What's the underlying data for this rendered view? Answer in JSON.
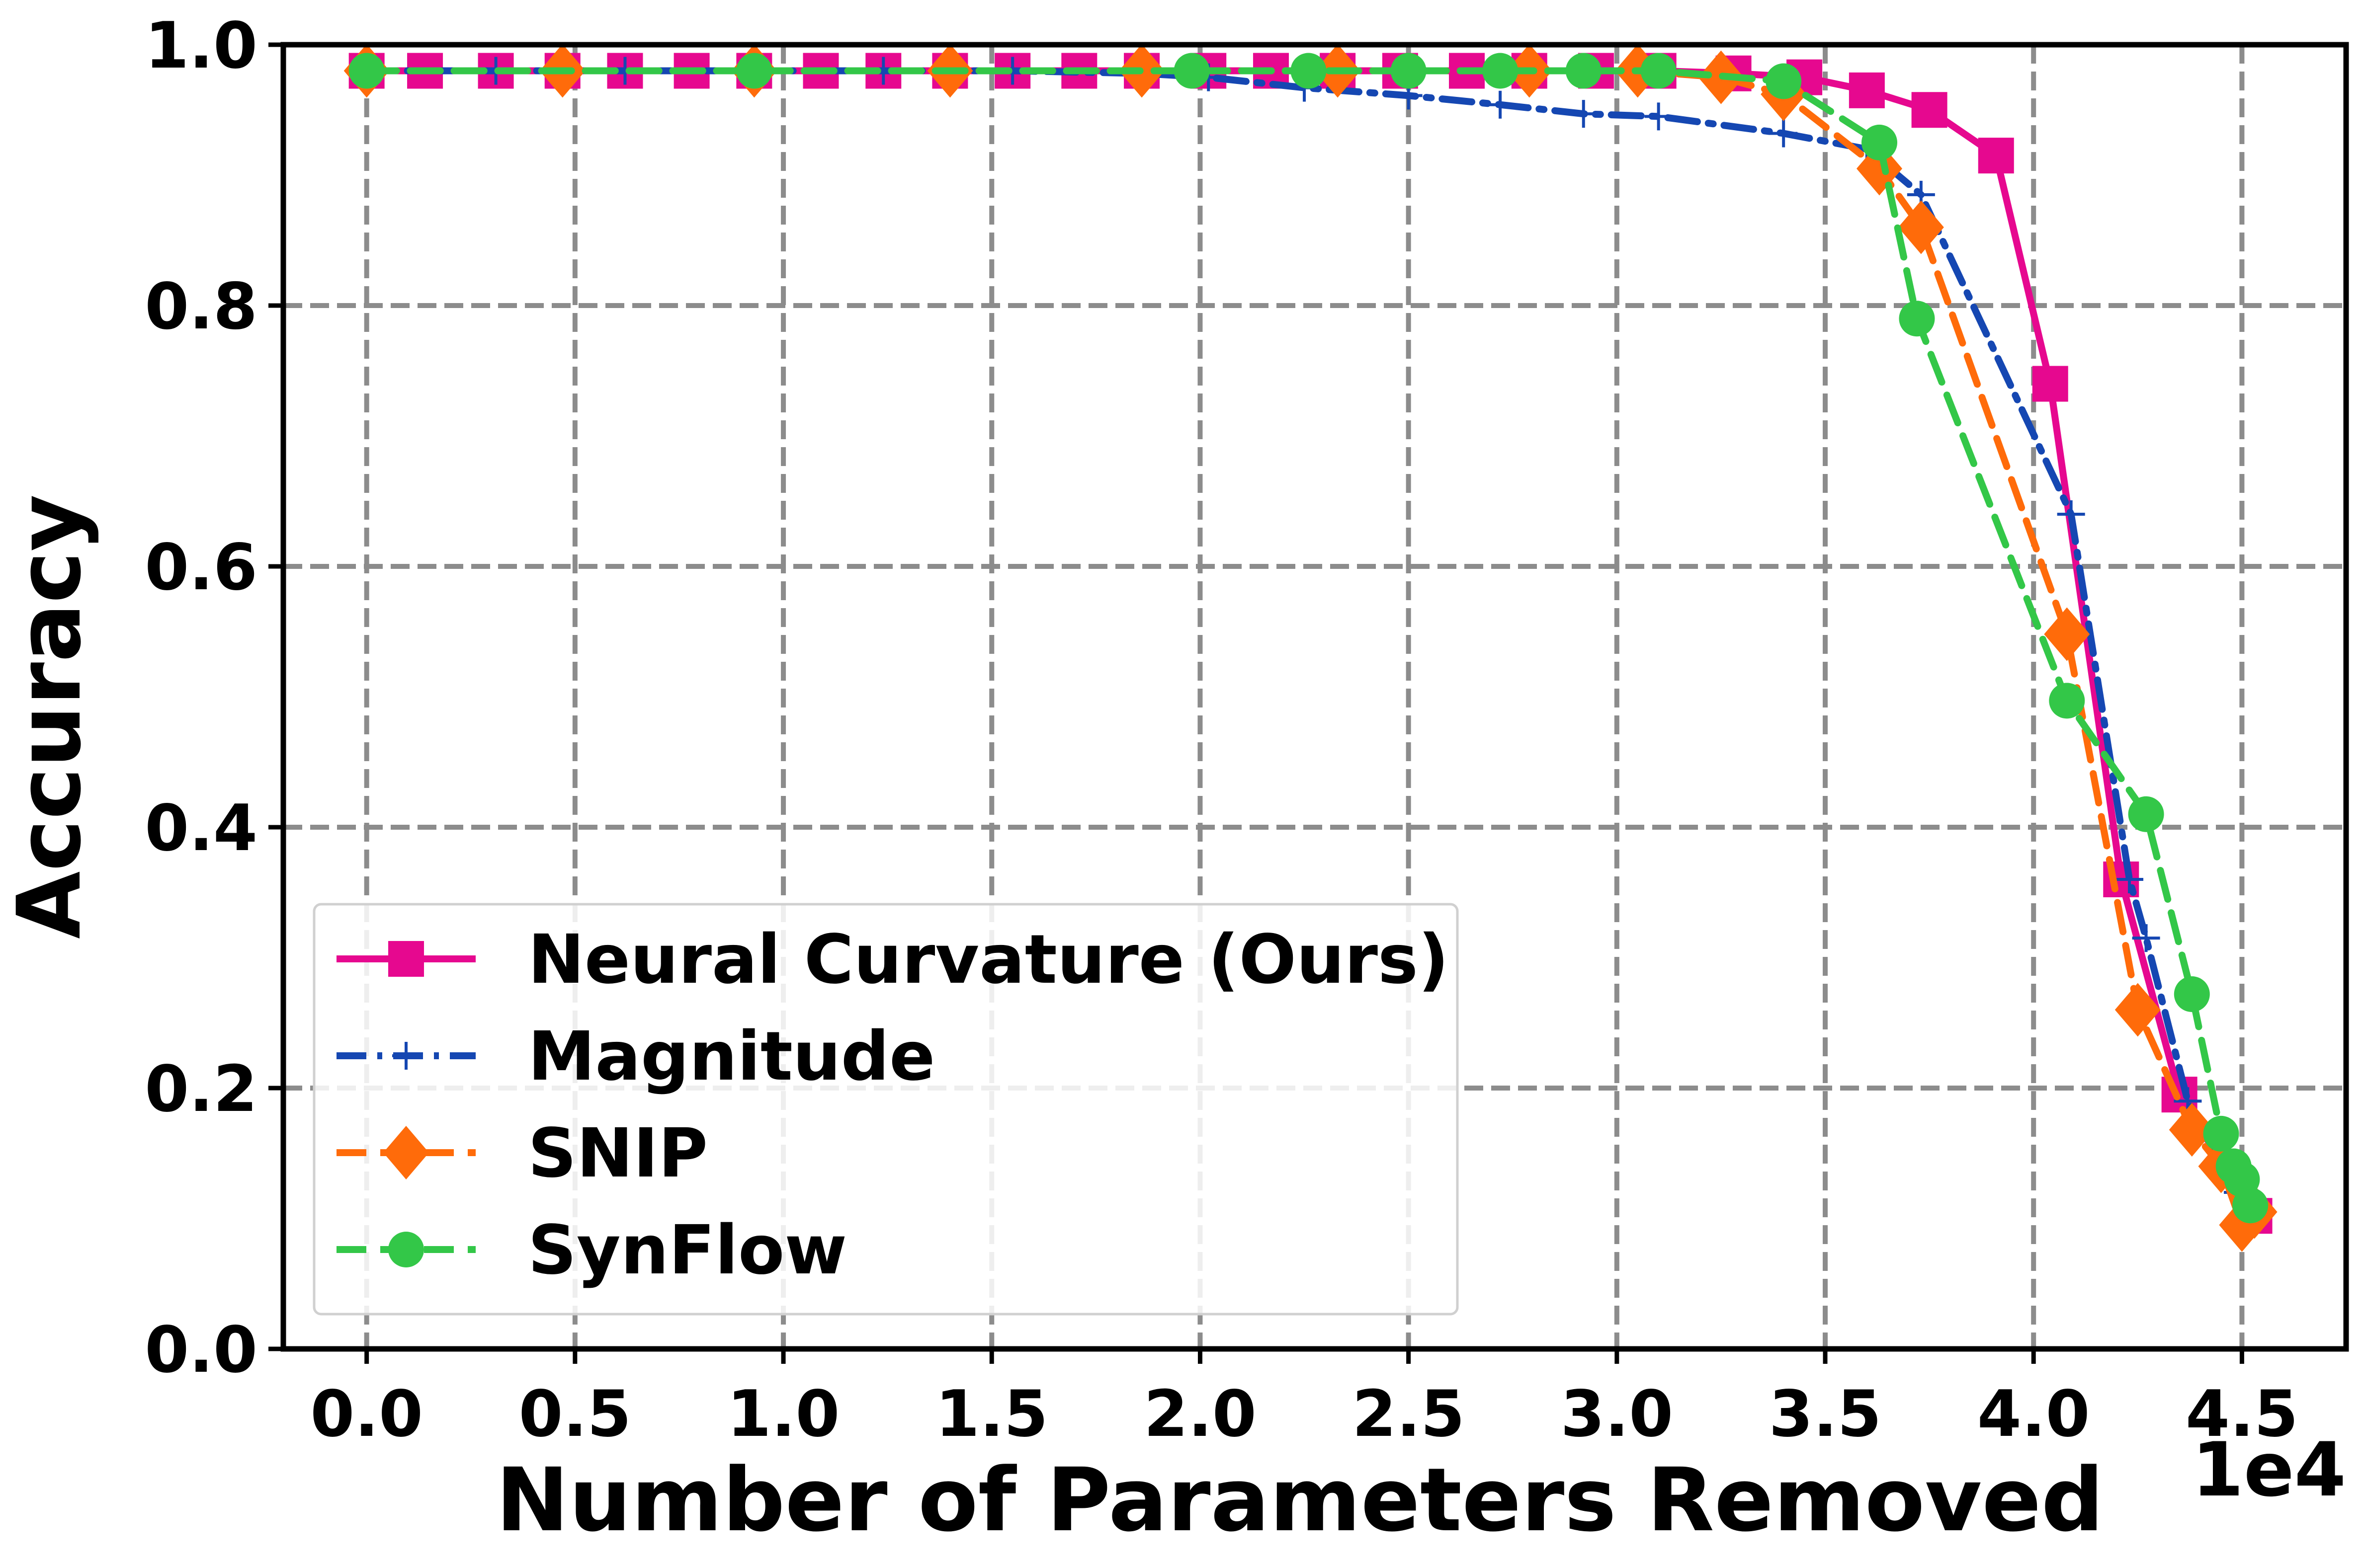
{
  "chart_data": {
    "type": "line",
    "title": "",
    "xlabel": "Number of Parameters Removed",
    "ylabel": "Accuracy",
    "x_multiplier_label": "1e4",
    "xlim": [
      -0.2,
      4.75
    ],
    "ylim": [
      0.0,
      1.0
    ],
    "xticks": [
      0.0,
      0.5,
      1.0,
      1.5,
      2.0,
      2.5,
      3.0,
      3.5,
      4.0,
      4.5
    ],
    "xtick_labels": [
      "0.0",
      "0.5",
      "1.0",
      "1.5",
      "2.0",
      "2.5",
      "3.0",
      "3.5",
      "4.0",
      "4.5"
    ],
    "yticks": [
      0.0,
      0.2,
      0.4,
      0.6,
      0.8,
      1.0
    ],
    "ytick_labels": [
      "0.0",
      "0.2",
      "0.4",
      "0.6",
      "0.8",
      "1.0"
    ],
    "grid": true,
    "legend_position": "lower-left",
    "series": [
      {
        "name": "Neural Curvature (Ours)",
        "color": "#e6088f",
        "marker": "square",
        "linestyle": "solid",
        "points": [
          [
            0.0,
            0.98
          ],
          [
            0.14,
            0.98
          ],
          [
            0.31,
            0.98
          ],
          [
            0.47,
            0.98
          ],
          [
            0.62,
            0.98
          ],
          [
            0.78,
            0.98
          ],
          [
            0.93,
            0.98
          ],
          [
            1.09,
            0.98
          ],
          [
            1.24,
            0.98
          ],
          [
            1.4,
            0.98
          ],
          [
            1.55,
            0.98
          ],
          [
            1.71,
            0.98
          ],
          [
            1.86,
            0.98
          ],
          [
            2.02,
            0.98
          ],
          [
            2.17,
            0.98
          ],
          [
            2.33,
            0.98
          ],
          [
            2.48,
            0.98
          ],
          [
            2.64,
            0.98
          ],
          [
            2.79,
            0.98
          ],
          [
            2.95,
            0.98
          ],
          [
            3.1,
            0.98
          ],
          [
            3.28,
            0.978
          ],
          [
            3.45,
            0.975
          ],
          [
            3.6,
            0.965
          ],
          [
            3.75,
            0.95
          ],
          [
            3.91,
            0.915
          ],
          [
            4.04,
            0.74
          ],
          [
            4.21,
            0.36
          ],
          [
            4.35,
            0.195
          ],
          [
            4.53,
            0.102
          ]
        ]
      },
      {
        "name": "Magnitude",
        "color": "#1547b2",
        "marker": "plus",
        "linestyle": "dashdot",
        "points": [
          [
            0.0,
            0.98
          ],
          [
            0.31,
            0.98
          ],
          [
            0.62,
            0.98
          ],
          [
            0.93,
            0.98
          ],
          [
            1.24,
            0.98
          ],
          [
            1.55,
            0.98
          ],
          [
            1.86,
            0.978
          ],
          [
            2.02,
            0.975
          ],
          [
            2.25,
            0.967
          ],
          [
            2.5,
            0.961
          ],
          [
            2.72,
            0.954
          ],
          [
            2.92,
            0.947
          ],
          [
            3.1,
            0.945
          ],
          [
            3.4,
            0.932
          ],
          [
            3.6,
            0.92
          ],
          [
            3.73,
            0.885
          ],
          [
            4.09,
            0.64
          ],
          [
            4.23,
            0.36
          ],
          [
            4.27,
            0.315
          ],
          [
            4.37,
            0.19
          ],
          [
            4.49,
            0.12
          ],
          [
            4.52,
            0.1
          ]
        ]
      },
      {
        "name": "SNIP",
        "color": "#ff6b0a",
        "marker": "diamond",
        "linestyle": "dashed",
        "points": [
          [
            0.0,
            0.98
          ],
          [
            0.47,
            0.98
          ],
          [
            0.93,
            0.98
          ],
          [
            1.4,
            0.98
          ],
          [
            1.86,
            0.98
          ],
          [
            2.33,
            0.98
          ],
          [
            2.79,
            0.98
          ],
          [
            3.05,
            0.98
          ],
          [
            3.25,
            0.975
          ],
          [
            3.4,
            0.962
          ],
          [
            3.63,
            0.905
          ],
          [
            3.73,
            0.86
          ],
          [
            4.08,
            0.548
          ],
          [
            4.25,
            0.26
          ],
          [
            4.38,
            0.168
          ],
          [
            4.45,
            0.14
          ],
          [
            4.5,
            0.095
          ],
          [
            4.53,
            0.105
          ]
        ]
      },
      {
        "name": "SynFlow",
        "color": "#33c748",
        "marker": "circle",
        "linestyle": "dashed",
        "points": [
          [
            0.0,
            0.98
          ],
          [
            0.93,
            0.98
          ],
          [
            1.98,
            0.98
          ],
          [
            2.26,
            0.98
          ],
          [
            2.5,
            0.98
          ],
          [
            2.72,
            0.98
          ],
          [
            2.92,
            0.98
          ],
          [
            3.1,
            0.98
          ],
          [
            3.4,
            0.972
          ],
          [
            3.63,
            0.925
          ],
          [
            3.72,
            0.79
          ],
          [
            4.08,
            0.497
          ],
          [
            4.27,
            0.41
          ],
          [
            4.38,
            0.272
          ],
          [
            4.45,
            0.165
          ],
          [
            4.48,
            0.14
          ],
          [
            4.5,
            0.13
          ],
          [
            4.52,
            0.11
          ]
        ]
      }
    ]
  }
}
